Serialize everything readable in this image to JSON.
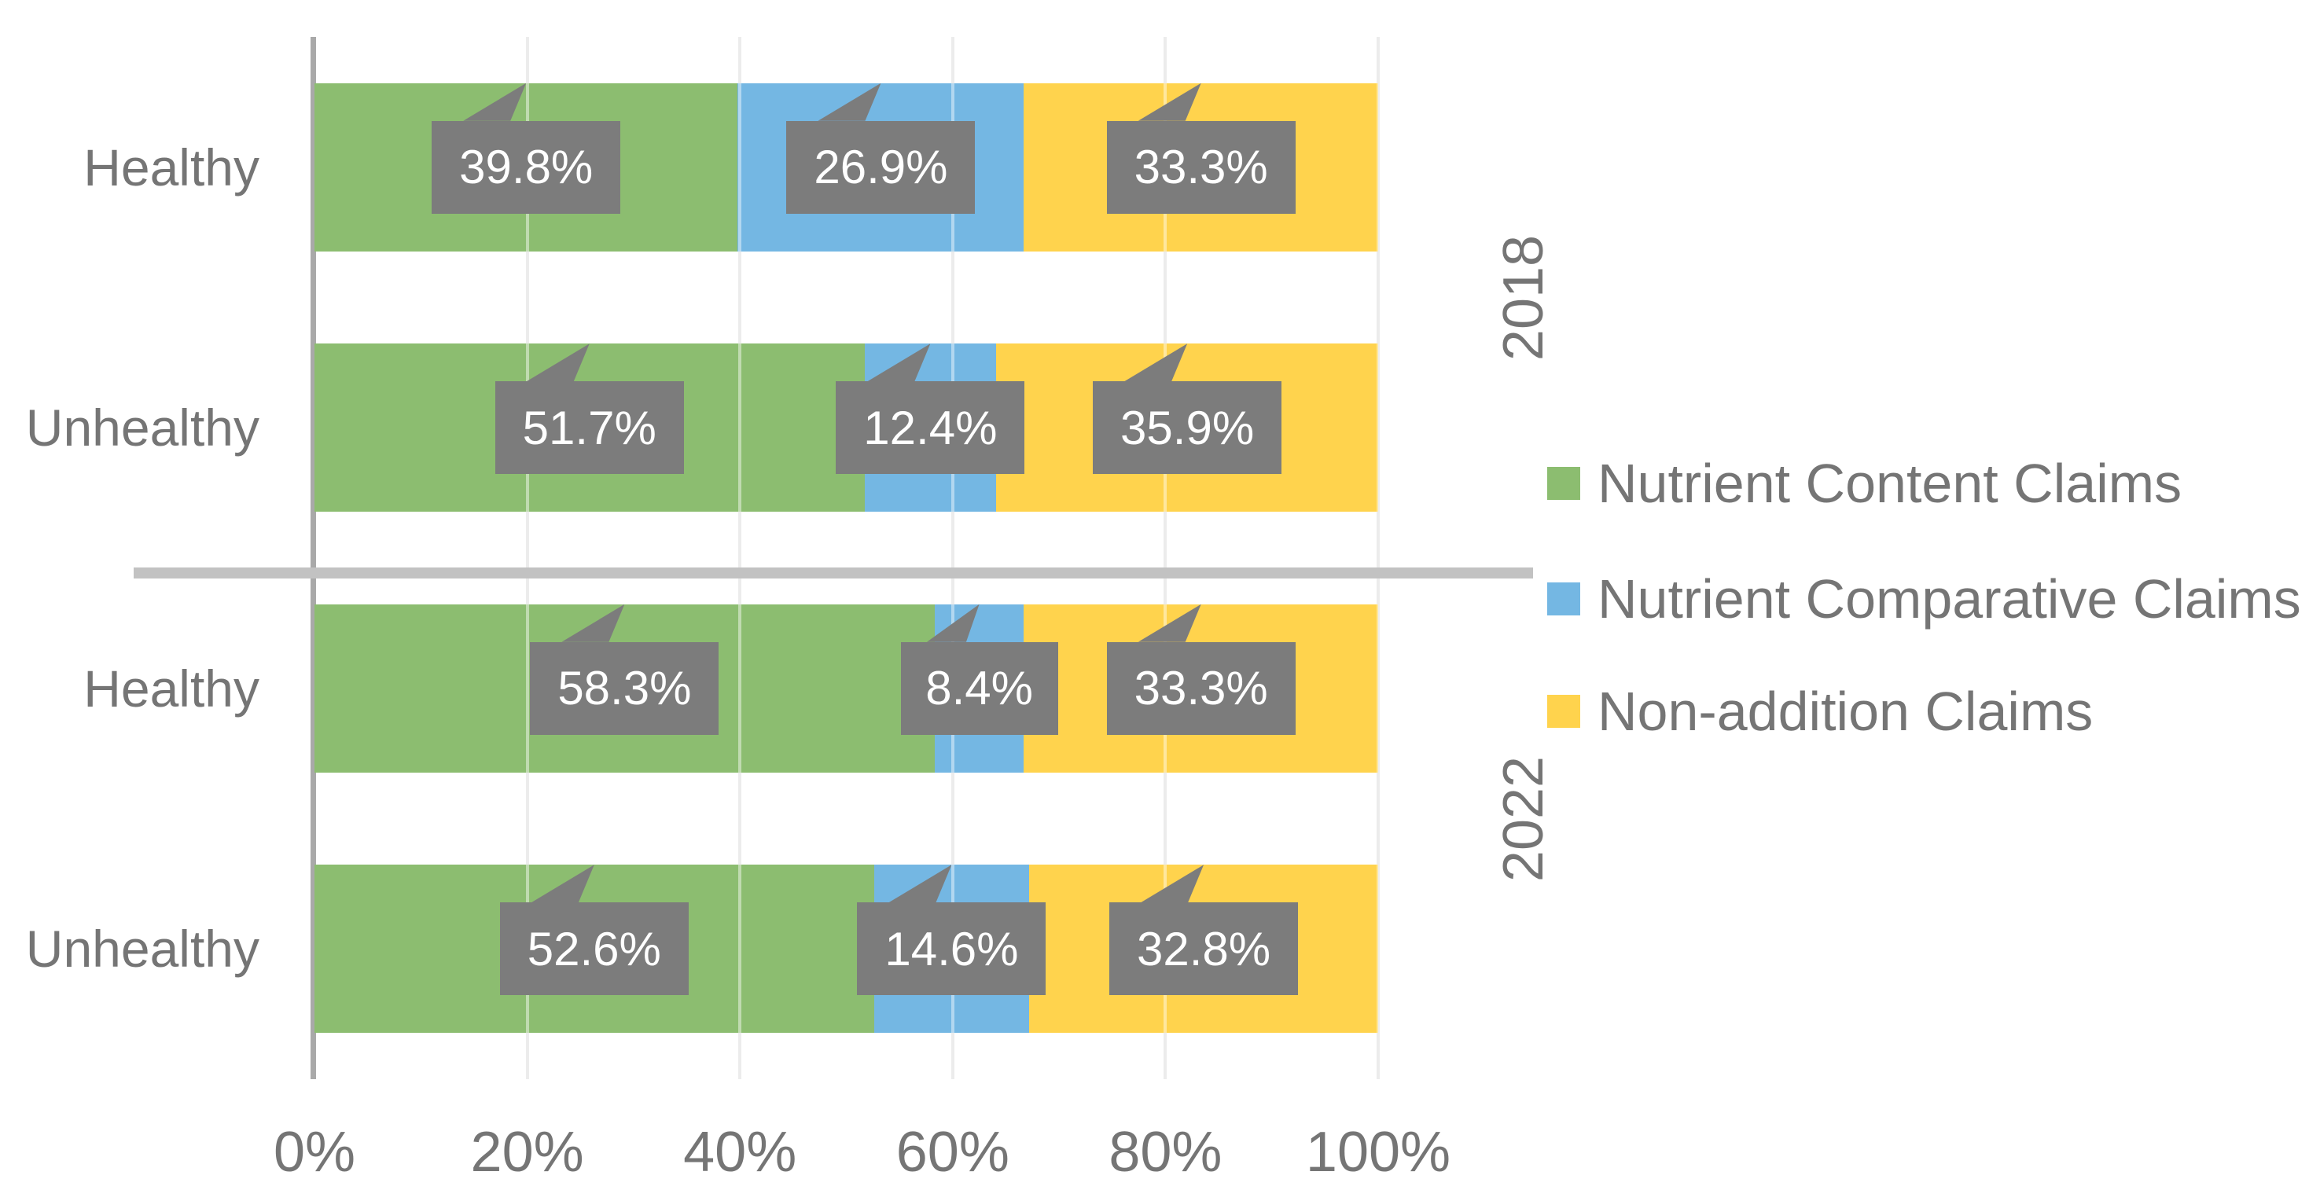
{
  "chart_data": {
    "type": "bar",
    "subtype": "stacked-100-horizontal",
    "xlabel": "",
    "ylabel": "",
    "xlim": [
      0,
      100
    ],
    "grid": "vertical, every 20%",
    "legend_position": "right",
    "x_ticks": [
      "0%",
      "20%",
      "40%",
      "60%",
      "80%",
      "100%"
    ],
    "series": [
      {
        "name": "Nutrient Content Claims",
        "color": "#8CBD70"
      },
      {
        "name": "Nutrient Comparative Claims",
        "color": "#74B7E3"
      },
      {
        "name": "Non-addition Claims",
        "color": "#FFD34D"
      }
    ],
    "groups": [
      {
        "label": "2018",
        "rows": [
          {
            "category": "Healthy",
            "values": [
              39.8,
              26.9,
              33.3
            ],
            "labels": [
              "39.8%",
              "26.9%",
              "33.3%"
            ]
          },
          {
            "category": "Unhealthy",
            "values": [
              51.7,
              12.4,
              35.9
            ],
            "labels": [
              "51.7%",
              "12.4%",
              "35.9%"
            ]
          }
        ]
      },
      {
        "label": "2022",
        "rows": [
          {
            "category": "Healthy",
            "values": [
              58.3,
              8.4,
              33.3
            ],
            "labels": [
              "58.3%",
              "8.4%",
              "33.3%"
            ]
          },
          {
            "category": "Unhealthy",
            "values": [
              52.6,
              14.6,
              32.8
            ],
            "labels": [
              "52.6%",
              "14.6%",
              "32.8%"
            ]
          }
        ]
      }
    ]
  },
  "colors": {
    "background": "#FFFFFF",
    "axis": "#A9A9A9",
    "gridline": "#DCDCDC",
    "gridline_over_bars": "rgba(255,255,255,0.45)",
    "divider": "#C2C2C2",
    "text": "#757575",
    "callout_bg": "#7C7C7C",
    "callout_text": "#FFFFFF"
  }
}
